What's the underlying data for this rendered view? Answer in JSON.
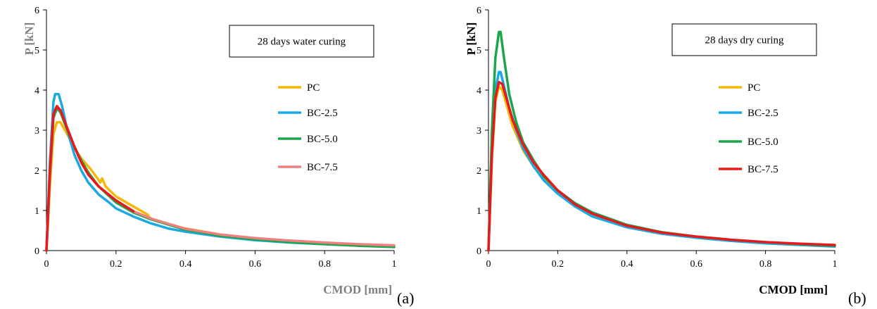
{
  "chart_data": [
    {
      "type": "line",
      "panel_label": "(a)",
      "annotation": "28 days water curing",
      "xlabel": "CMOD [mm]",
      "ylabel": "P [kN]",
      "label_color": "#808080",
      "xlim": [
        0,
        1
      ],
      "ylim": [
        0,
        6
      ],
      "xticks": [
        "0",
        "0.2",
        "0.4",
        "0.6",
        "0.8",
        "1"
      ],
      "yticks": [
        "0",
        "1",
        "2",
        "3",
        "4",
        "5",
        "6"
      ],
      "grid": false,
      "legend_position": "right",
      "series": [
        {
          "name": "PC",
          "color": "#F5B80A",
          "x": [
            0,
            0.01,
            0.02,
            0.03,
            0.04,
            0.06,
            0.08,
            0.1,
            0.13,
            0.155,
            0.16,
            0.17,
            0.2,
            0.25,
            0.29,
            0.3,
            0.35,
            0.4,
            0.5,
            0.6,
            0.7,
            0.8,
            0.9,
            1.0
          ],
          "y": [
            0,
            1.6,
            2.9,
            3.2,
            3.2,
            2.9,
            2.55,
            2.3,
            2.0,
            1.7,
            1.8,
            1.6,
            1.35,
            1.1,
            0.9,
            0.8,
            0.65,
            0.55,
            0.4,
            0.3,
            0.24,
            0.19,
            0.15,
            0.12
          ]
        },
        {
          "name": "BC-2.5",
          "color": "#1BA9E1",
          "x": [
            0,
            0.01,
            0.02,
            0.025,
            0.035,
            0.045,
            0.06,
            0.08,
            0.1,
            0.12,
            0.15,
            0.18,
            0.2,
            0.25,
            0.3,
            0.35,
            0.4,
            0.5,
            0.6,
            0.7,
            0.8,
            0.9,
            1.0
          ],
          "y": [
            0,
            2.2,
            3.7,
            3.9,
            3.9,
            3.6,
            3.0,
            2.4,
            2.0,
            1.7,
            1.4,
            1.2,
            1.05,
            0.85,
            0.68,
            0.55,
            0.47,
            0.35,
            0.26,
            0.2,
            0.16,
            0.13,
            0.1
          ]
        },
        {
          "name": "BC-5.0",
          "color": "#1AA64A",
          "x": [
            0,
            0.01,
            0.02,
            0.03,
            0.04,
            0.06,
            0.08,
            0.1,
            0.12,
            0.15,
            0.2,
            0.25,
            0.3,
            0.4,
            0.5,
            0.6,
            0.7,
            0.8,
            0.9,
            1.0
          ],
          "y": [
            0,
            1.9,
            3.3,
            3.55,
            3.45,
            3.0,
            2.6,
            2.25,
            1.95,
            1.6,
            1.2,
            0.95,
            0.78,
            0.52,
            0.37,
            0.28,
            0.21,
            0.16,
            0.12,
            0.09
          ]
        },
        {
          "name": "BC-7.5",
          "color": "#F08080",
          "x": [
            0,
            0.01,
            0.02,
            0.03,
            0.04,
            0.06,
            0.08,
            0.1,
            0.12,
            0.15,
            0.2,
            0.25,
            0.3,
            0.4,
            0.5,
            0.6,
            0.7,
            0.8,
            0.9,
            1.0
          ],
          "y": [
            0,
            2.0,
            3.4,
            3.6,
            3.5,
            3.05,
            2.6,
            2.2,
            1.9,
            1.6,
            1.25,
            0.98,
            0.8,
            0.54,
            0.4,
            0.31,
            0.25,
            0.2,
            0.16,
            0.13
          ]
        }
      ],
      "overlay_series": {
        "name": "BC-7.5",
        "color": "#E8191C",
        "x": [
          0,
          0.01,
          0.02,
          0.03,
          0.04,
          0.06,
          0.08,
          0.1,
          0.12,
          0.15,
          0.2,
          0.25,
          0.3,
          0.4,
          0.5,
          0.6,
          0.7,
          0.8,
          0.9,
          1.0
        ],
        "y": [
          0,
          2.0,
          3.4,
          3.6,
          3.5,
          3.05,
          2.6,
          2.2,
          1.9,
          1.6,
          1.25,
          0.98,
          0.8,
          0.54,
          0.4,
          0.31,
          0.25,
          0.2,
          0.16,
          0.13
        ]
      }
    },
    {
      "type": "line",
      "panel_label": "(b)",
      "annotation": "28 days dry curing",
      "xlabel": "CMOD [mm]",
      "ylabel": "P [kN]",
      "label_color": "#000000",
      "xlim": [
        0,
        1
      ],
      "ylim": [
        0,
        6
      ],
      "xticks": [
        "0",
        "0.2",
        "0.4",
        "0.6",
        "0.8",
        "1"
      ],
      "yticks": [
        "0",
        "1",
        "2",
        "3",
        "4",
        "5",
        "6"
      ],
      "grid": false,
      "legend_position": "right",
      "series": [
        {
          "name": "PC",
          "color": "#F5B80A",
          "x": [
            0,
            0.01,
            0.02,
            0.03,
            0.04,
            0.05,
            0.07,
            0.1,
            0.13,
            0.16,
            0.2,
            0.25,
            0.3,
            0.4,
            0.5,
            0.6,
            0.7,
            0.8,
            0.9,
            1.0
          ],
          "y": [
            0,
            2.3,
            3.7,
            4.1,
            4.0,
            3.7,
            3.1,
            2.5,
            2.1,
            1.8,
            1.45,
            1.12,
            0.9,
            0.6,
            0.44,
            0.34,
            0.26,
            0.2,
            0.16,
            0.13
          ]
        },
        {
          "name": "BC-2.5",
          "color": "#1BA9E1",
          "x": [
            0,
            0.01,
            0.02,
            0.03,
            0.035,
            0.045,
            0.06,
            0.08,
            0.1,
            0.13,
            0.16,
            0.2,
            0.25,
            0.3,
            0.4,
            0.5,
            0.6,
            0.7,
            0.8,
            0.9,
            1.0
          ],
          "y": [
            0,
            2.5,
            4.0,
            4.45,
            4.45,
            4.1,
            3.55,
            3.0,
            2.55,
            2.1,
            1.75,
            1.42,
            1.1,
            0.85,
            0.58,
            0.42,
            0.32,
            0.24,
            0.18,
            0.14,
            0.1
          ]
        },
        {
          "name": "BC-5.0",
          "color": "#1AA64A",
          "x": [
            0,
            0.01,
            0.02,
            0.03,
            0.035,
            0.045,
            0.06,
            0.08,
            0.1,
            0.13,
            0.16,
            0.2,
            0.25,
            0.3,
            0.4,
            0.5,
            0.6,
            0.7,
            0.8,
            0.9,
            1.0
          ],
          "y": [
            0,
            3.0,
            4.8,
            5.45,
            5.45,
            4.8,
            3.9,
            3.2,
            2.7,
            2.25,
            1.85,
            1.5,
            1.18,
            0.95,
            0.64,
            0.46,
            0.35,
            0.27,
            0.21,
            0.16,
            0.12
          ]
        },
        {
          "name": "BC-7.5",
          "color": "#E8191C",
          "x": [
            0,
            0.01,
            0.02,
            0.03,
            0.04,
            0.05,
            0.07,
            0.1,
            0.13,
            0.16,
            0.2,
            0.25,
            0.3,
            0.4,
            0.5,
            0.6,
            0.7,
            0.8,
            0.9,
            1.0
          ],
          "y": [
            0,
            2.4,
            3.8,
            4.2,
            4.15,
            3.85,
            3.25,
            2.65,
            2.2,
            1.88,
            1.5,
            1.15,
            0.92,
            0.62,
            0.45,
            0.35,
            0.27,
            0.21,
            0.17,
            0.14
          ]
        }
      ]
    }
  ]
}
